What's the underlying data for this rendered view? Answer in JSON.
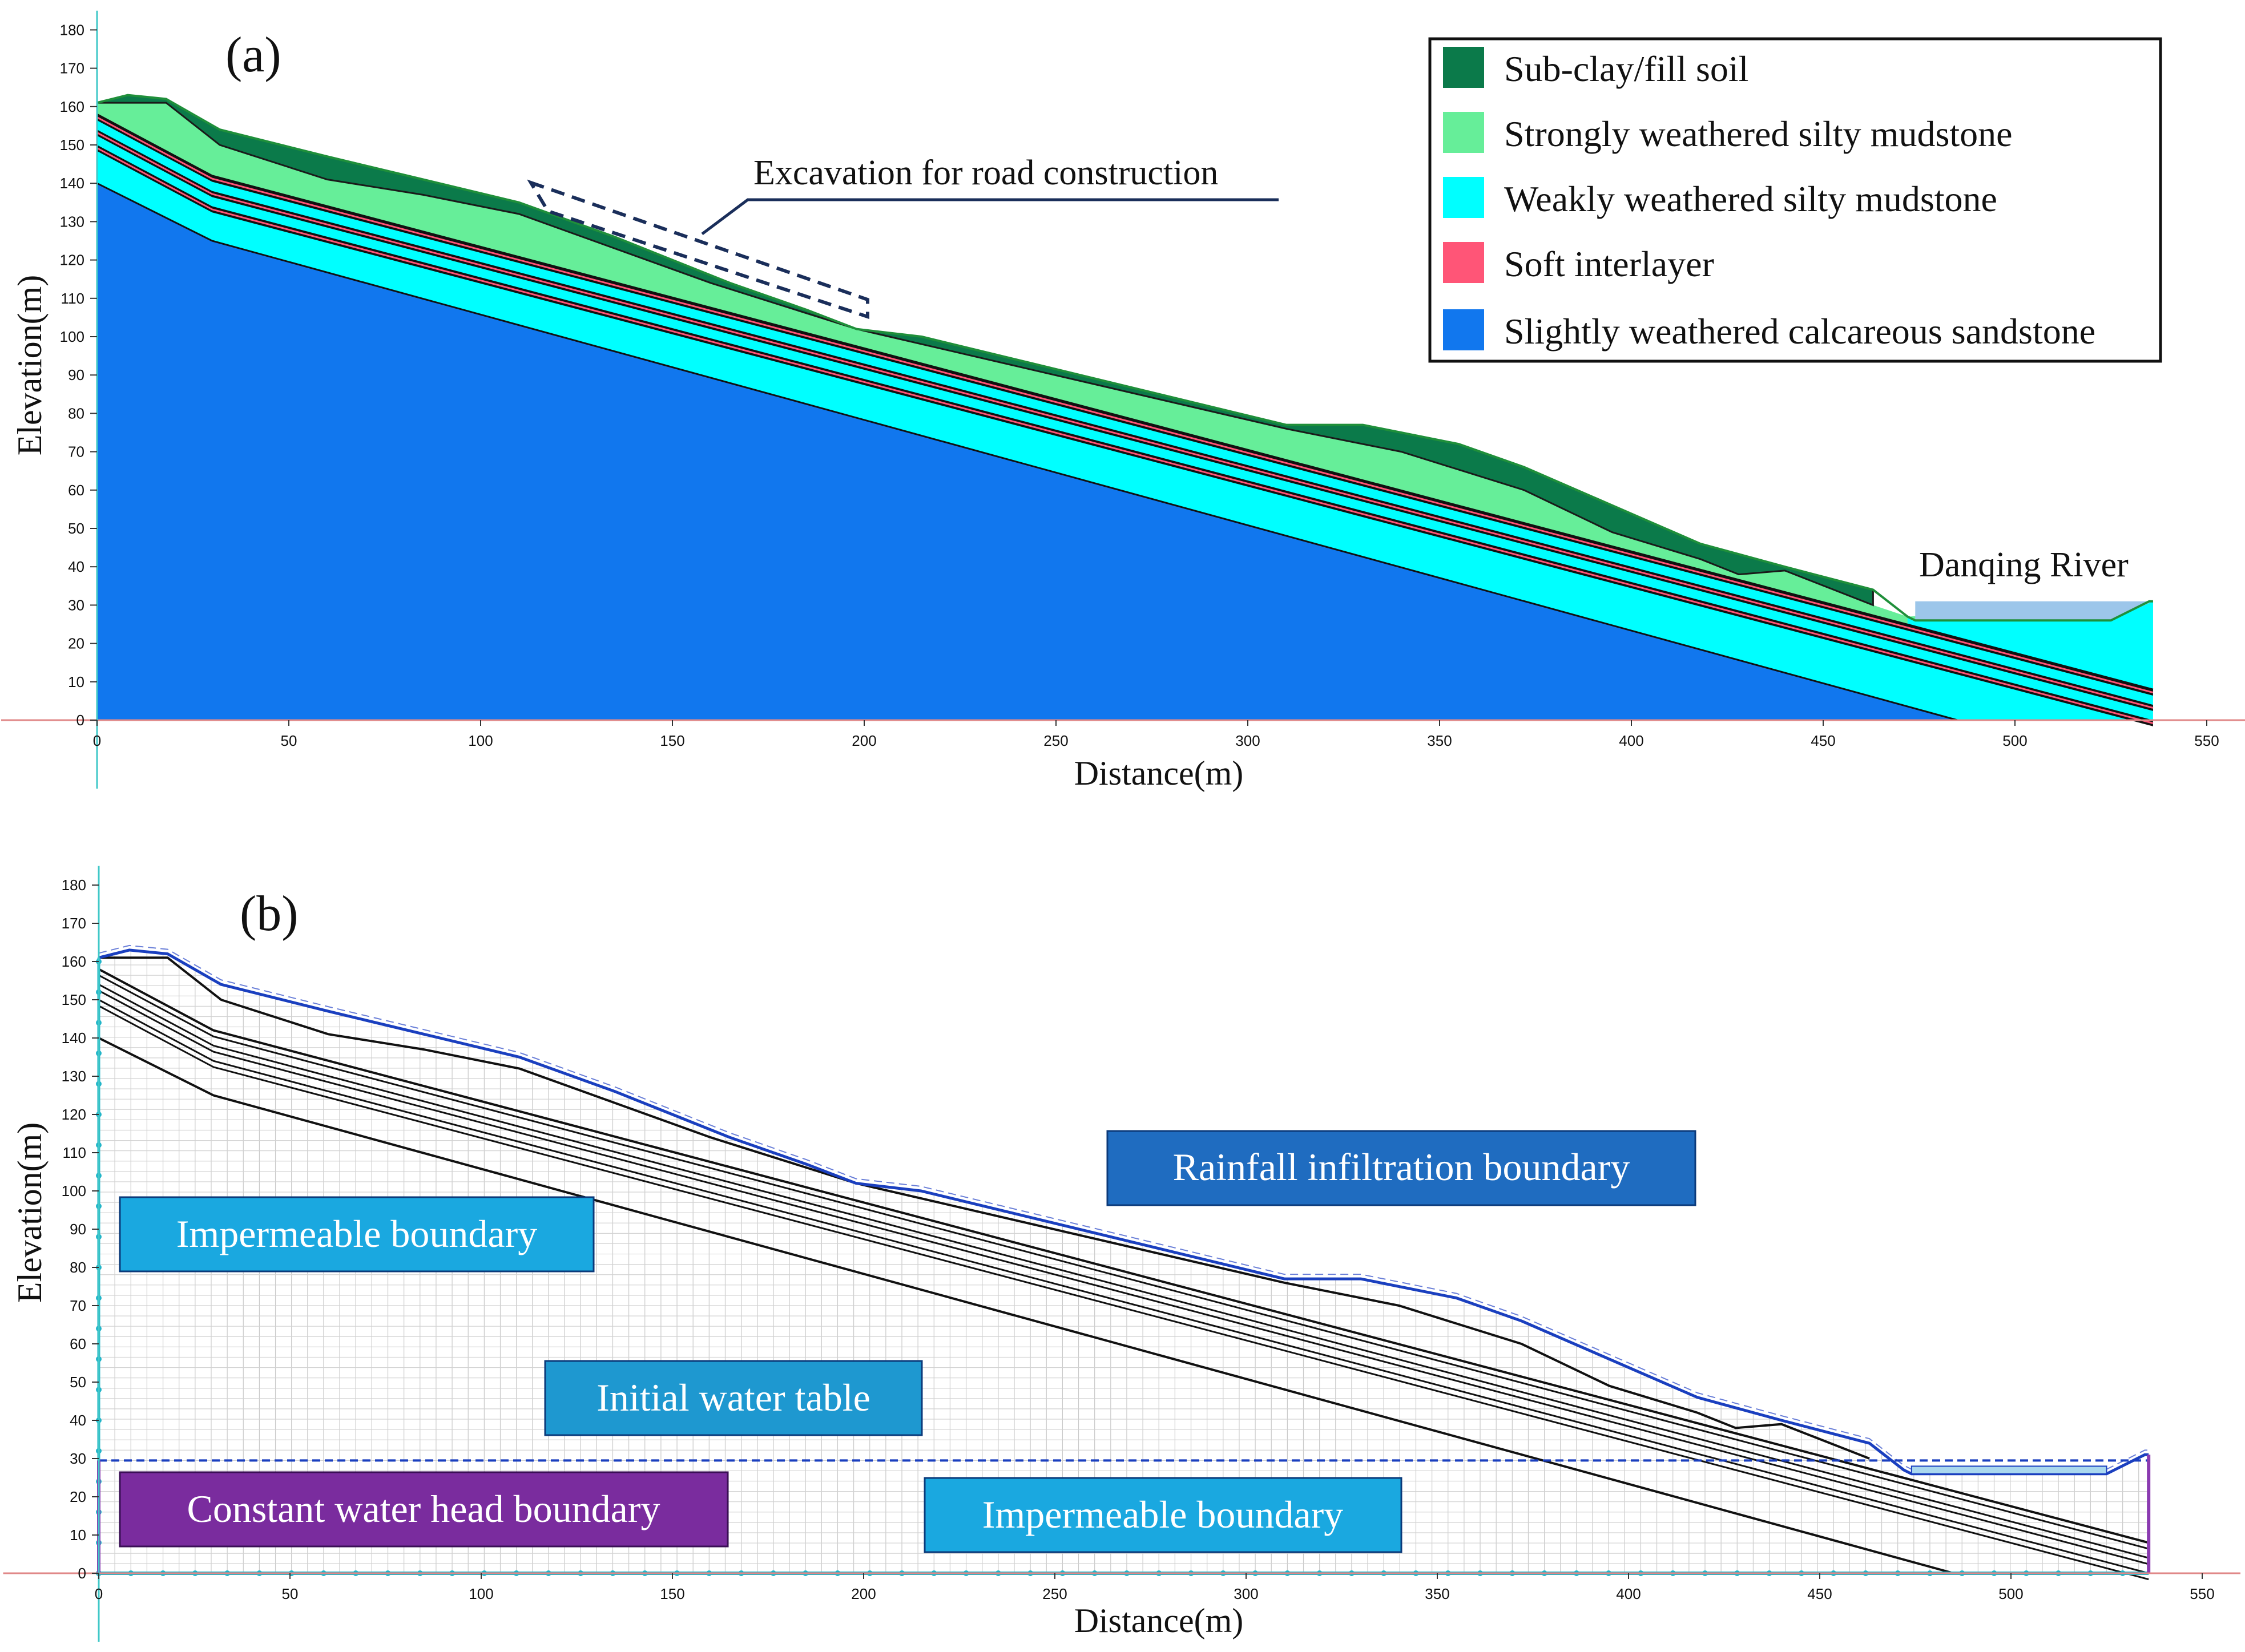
{
  "panel_a": {
    "label": "(a)",
    "xlabel": "Distance(m)",
    "ylabel": "Elevation(m)",
    "xticks": [
      0,
      50,
      100,
      150,
      200,
      250,
      300,
      350,
      400,
      450,
      500,
      550
    ],
    "yticks": [
      0,
      10,
      20,
      30,
      40,
      50,
      60,
      70,
      80,
      90,
      100,
      110,
      120,
      130,
      140,
      150,
      160,
      170,
      180
    ],
    "annotation": "Excavation for road construction",
    "river_label": "Danqing River",
    "legend": [
      {
        "label": "Sub-clay/fill soil",
        "color": "#0b7a4a"
      },
      {
        "label": "Strongly weathered silty mudstone",
        "color": "#66ee99"
      },
      {
        "label": "Weakly weathered silty mudstone",
        "color": "#00ffff"
      },
      {
        "label": "Soft interlayer",
        "color": "#ff5577"
      },
      {
        "label": "Slightly weathered calcareous sandstone",
        "color": "#1177ee"
      }
    ]
  },
  "panel_b": {
    "label": "(b)",
    "xlabel": "Distance(m)",
    "ylabel": "Elevation(m)",
    "xticks": [
      0,
      50,
      100,
      150,
      200,
      250,
      300,
      350,
      400,
      450,
      500,
      550
    ],
    "yticks": [
      0,
      10,
      20,
      30,
      40,
      50,
      60,
      70,
      80,
      90,
      100,
      110,
      120,
      130,
      140,
      150,
      160,
      170,
      180
    ],
    "boundaries": {
      "rainfall": "Rainfall infiltration boundary",
      "impermeable_left": "Impermeable boundary",
      "water_table": "Initial water table",
      "constant_head": "Constant water head boundary",
      "impermeable_bottom": "Impermeable boundary"
    },
    "colors": {
      "rainfall": "#1f6cc0",
      "impermeable": "#1aa8e0",
      "water_table": "#1e98d0",
      "constant_head": "#7a2c9e"
    }
  },
  "slope_profile": {
    "surface": [
      [
        0,
        161
      ],
      [
        8,
        163
      ],
      [
        18,
        162
      ],
      [
        32,
        154
      ],
      [
        60,
        147
      ],
      [
        85,
        141
      ],
      [
        110,
        135
      ],
      [
        135,
        126
      ],
      [
        165,
        114
      ],
      [
        185,
        107
      ],
      [
        198,
        102
      ],
      [
        215,
        100
      ],
      [
        310,
        77
      ],
      [
        330,
        77
      ],
      [
        355,
        72
      ],
      [
        372,
        66
      ],
      [
        395,
        56
      ],
      [
        418,
        46
      ],
      [
        440,
        40
      ],
      [
        463,
        34
      ],
      [
        472,
        27
      ],
      [
        474,
        26
      ],
      [
        525,
        26
      ],
      [
        535,
        31
      ],
      [
        536,
        31
      ]
    ],
    "sub_clay_base": [
      [
        0,
        161
      ],
      [
        18,
        161
      ],
      [
        32,
        150
      ],
      [
        60,
        141
      ],
      [
        85,
        137
      ],
      [
        110,
        132
      ],
      [
        160,
        114
      ],
      [
        198,
        102
      ],
      [
        310,
        76
      ],
      [
        340,
        70
      ],
      [
        372,
        60
      ],
      [
        395,
        49
      ],
      [
        418,
        42
      ],
      [
        428,
        38
      ],
      [
        440,
        39
      ],
      [
        463,
        30
      ]
    ],
    "strong_base": [
      [
        0,
        158
      ],
      [
        30,
        142
      ],
      [
        536,
        8
      ]
    ],
    "weak_base": [
      [
        0,
        140
      ],
      [
        30,
        125
      ],
      [
        485,
        0
      ]
    ],
    "interlayers": [
      {
        "top": 158,
        "knee": 142
      },
      {
        "top": 154,
        "knee": 138
      },
      {
        "top": 150,
        "knee": 134
      }
    ],
    "river_level": 31,
    "water_table": 29.5
  }
}
